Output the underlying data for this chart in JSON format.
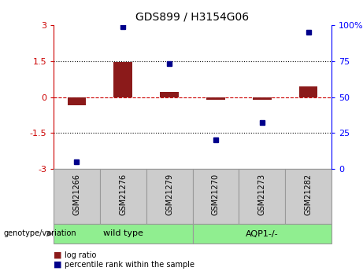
{
  "title": "GDS899 / H3154G06",
  "samples": [
    "GSM21266",
    "GSM21276",
    "GSM21279",
    "GSM21270",
    "GSM21273",
    "GSM21282"
  ],
  "log_ratio": [
    -0.35,
    1.45,
    0.2,
    -0.12,
    -0.1,
    0.45
  ],
  "percentile_rank": [
    5,
    99,
    73,
    20,
    32,
    95
  ],
  "bar_color": "#8B1A1A",
  "dot_color": "#00008B",
  "zero_line_color": "#CC0000",
  "ylim_left": [
    -3,
    3
  ],
  "ylim_right": [
    0,
    100
  ],
  "yticks_left": [
    -3,
    -1.5,
    0,
    1.5,
    3
  ],
  "yticks_right": [
    0,
    25,
    50,
    75,
    100
  ],
  "hlines": [
    1.5,
    -1.5
  ],
  "hline_color": "black",
  "group_border_color": "#999999",
  "sample_bg_color": "#cccccc",
  "group_colors": [
    "#90EE90",
    "#90EE90"
  ],
  "group_labels": [
    "wild type",
    "AQP1-/-"
  ],
  "group_ranges": [
    [
      0,
      3
    ],
    [
      3,
      6
    ]
  ],
  "legend_log_ratio_color": "#8B1A1A",
  "legend_percentile_color": "#00008B"
}
